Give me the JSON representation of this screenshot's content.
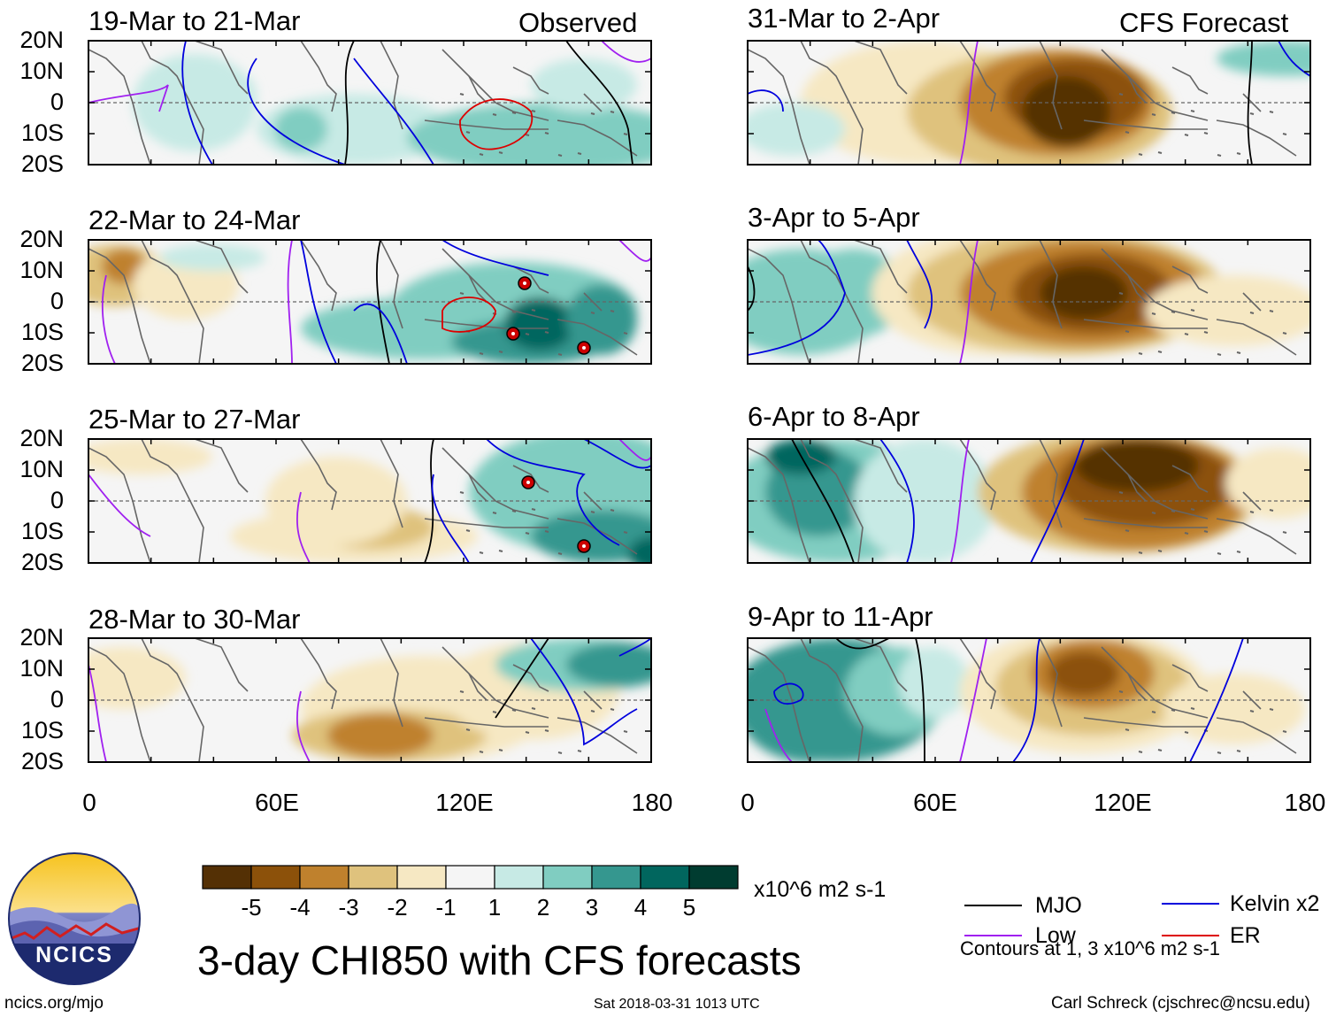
{
  "figure": {
    "title": "3-day CHI850 with CFS forecasts",
    "units_label": "x10^6 m2 s-1",
    "contour_note": "Contours at 1, 3 x10^6 m2 s-1",
    "site": "ncics.org/mjo",
    "timestamp": "Sat 2018-03-31 1013 UTC",
    "credit": "Carl Schreck (cjschrec@ncsu.edu)",
    "logo_text": "NCICS"
  },
  "columns": {
    "observed_label": "Observed",
    "forecast_label": "CFS Forecast"
  },
  "panels": [
    {
      "label": "19-Mar to 21-Mar",
      "kind": "observed"
    },
    {
      "label": "22-Mar to 24-Mar",
      "kind": "observed"
    },
    {
      "label": "25-Mar to 27-Mar",
      "kind": "observed"
    },
    {
      "label": "28-Mar to 30-Mar",
      "kind": "observed"
    },
    {
      "label": "31-Mar to 2-Apr",
      "kind": "forecast"
    },
    {
      "label": "3-Apr to 5-Apr",
      "kind": "forecast"
    },
    {
      "label": "6-Apr to 8-Apr",
      "kind": "forecast"
    },
    {
      "label": "9-Apr to 11-Apr",
      "kind": "forecast"
    }
  ],
  "axes": {
    "lat_labels": [
      "20N",
      "10N",
      "0",
      "10S",
      "20S"
    ],
    "lon_labels": [
      "0",
      "60E",
      "120E",
      "180"
    ]
  },
  "colorbar": {
    "labels": [
      "-5",
      "-4",
      "-3",
      "-2",
      "-1",
      "1",
      "2",
      "3",
      "4",
      "5"
    ],
    "colors": [
      "#543005",
      "#8c510a",
      "#bf812d",
      "#dfc27d",
      "#f6e8c3",
      "#f5f5f5",
      "#c7eae5",
      "#80cdc1",
      "#35978f",
      "#01665e",
      "#003c30"
    ]
  },
  "legend": [
    {
      "label": "MJO",
      "color": "#000000"
    },
    {
      "label": "Kelvin x2",
      "color": "#0000dd"
    },
    {
      "label": "Low",
      "color": "#a020f0"
    },
    {
      "label": "ER",
      "color": "#dd0000"
    }
  ],
  "map_colors": {
    "land": "#666666",
    "frame": "#000000",
    "equator": "#666666",
    "cyclone": "#cc0000"
  }
}
